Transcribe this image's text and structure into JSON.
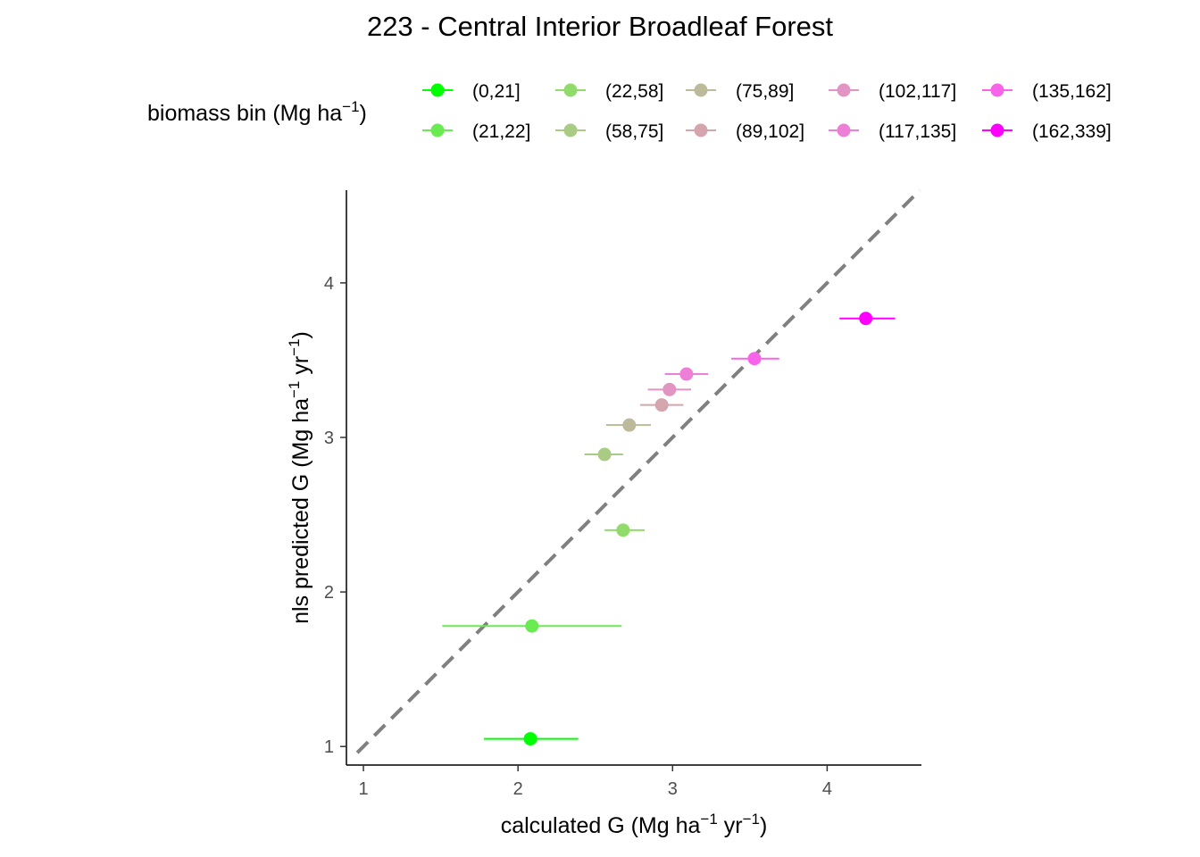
{
  "chart_data": {
    "type": "scatter",
    "title": "223 - Central Interior Broadleaf Forest",
    "xlabel": {
      "prefix": "calculated G (Mg ha",
      "sup1": "−1",
      "mid": " yr",
      "sup2": "−1",
      "suffix": ")"
    },
    "ylabel": {
      "prefix": "nls predicted G (Mg ha",
      "sup1": "−1",
      "mid": " yr",
      "sup2": "−1",
      "suffix": ")"
    },
    "legend": {
      "title": {
        "prefix": "biomass bin (Mg ha",
        "sup": "−1",
        "suffix": ")"
      },
      "placement": "top"
    },
    "xlim": [
      0.89,
      4.61
    ],
    "ylim": [
      0.88,
      4.6
    ],
    "xticks": [
      "1",
      "2",
      "3",
      "4"
    ],
    "yticks": [
      "1",
      "2",
      "3",
      "4"
    ],
    "grid": false,
    "reference_line": {
      "type": "identity",
      "style": "dashed",
      "color": "#808080"
    },
    "series": [
      {
        "name": "(0,21]",
        "color": "#00FF00",
        "x": 2.08,
        "y": 1.05,
        "xmin": 1.78,
        "xmax": 2.39
      },
      {
        "name": "(21,22]",
        "color": "#6BEB52",
        "x": 2.09,
        "y": 1.78,
        "xmin": 1.51,
        "xmax": 2.67
      },
      {
        "name": "(22,58]",
        "color": "#91DB6B",
        "x": 2.68,
        "y": 2.4,
        "xmin": 2.56,
        "xmax": 2.82
      },
      {
        "name": "(58,75]",
        "color": "#AACB83",
        "x": 2.56,
        "y": 2.89,
        "xmin": 2.43,
        "xmax": 2.68
      },
      {
        "name": "(75,89]",
        "color": "#BDBA9B",
        "x": 2.72,
        "y": 3.08,
        "xmin": 2.57,
        "xmax": 2.86
      },
      {
        "name": "(89,102]",
        "color": "#D5A5AE",
        "x": 2.93,
        "y": 3.21,
        "xmin": 2.79,
        "xmax": 3.07
      },
      {
        "name": "(102,117]",
        "color": "#E294C2",
        "x": 2.98,
        "y": 3.31,
        "xmin": 2.84,
        "xmax": 3.12
      },
      {
        "name": "(117,135]",
        "color": "#EE7FD6",
        "x": 3.09,
        "y": 3.41,
        "xmin": 2.95,
        "xmax": 3.23
      },
      {
        "name": "(135,162]",
        "color": "#F764E9",
        "x": 3.53,
        "y": 3.51,
        "xmin": 3.38,
        "xmax": 3.69
      },
      {
        "name": "(162,339]",
        "color": "#FF00FF",
        "x": 4.25,
        "y": 3.77,
        "xmin": 4.08,
        "xmax": 4.44
      }
    ]
  }
}
